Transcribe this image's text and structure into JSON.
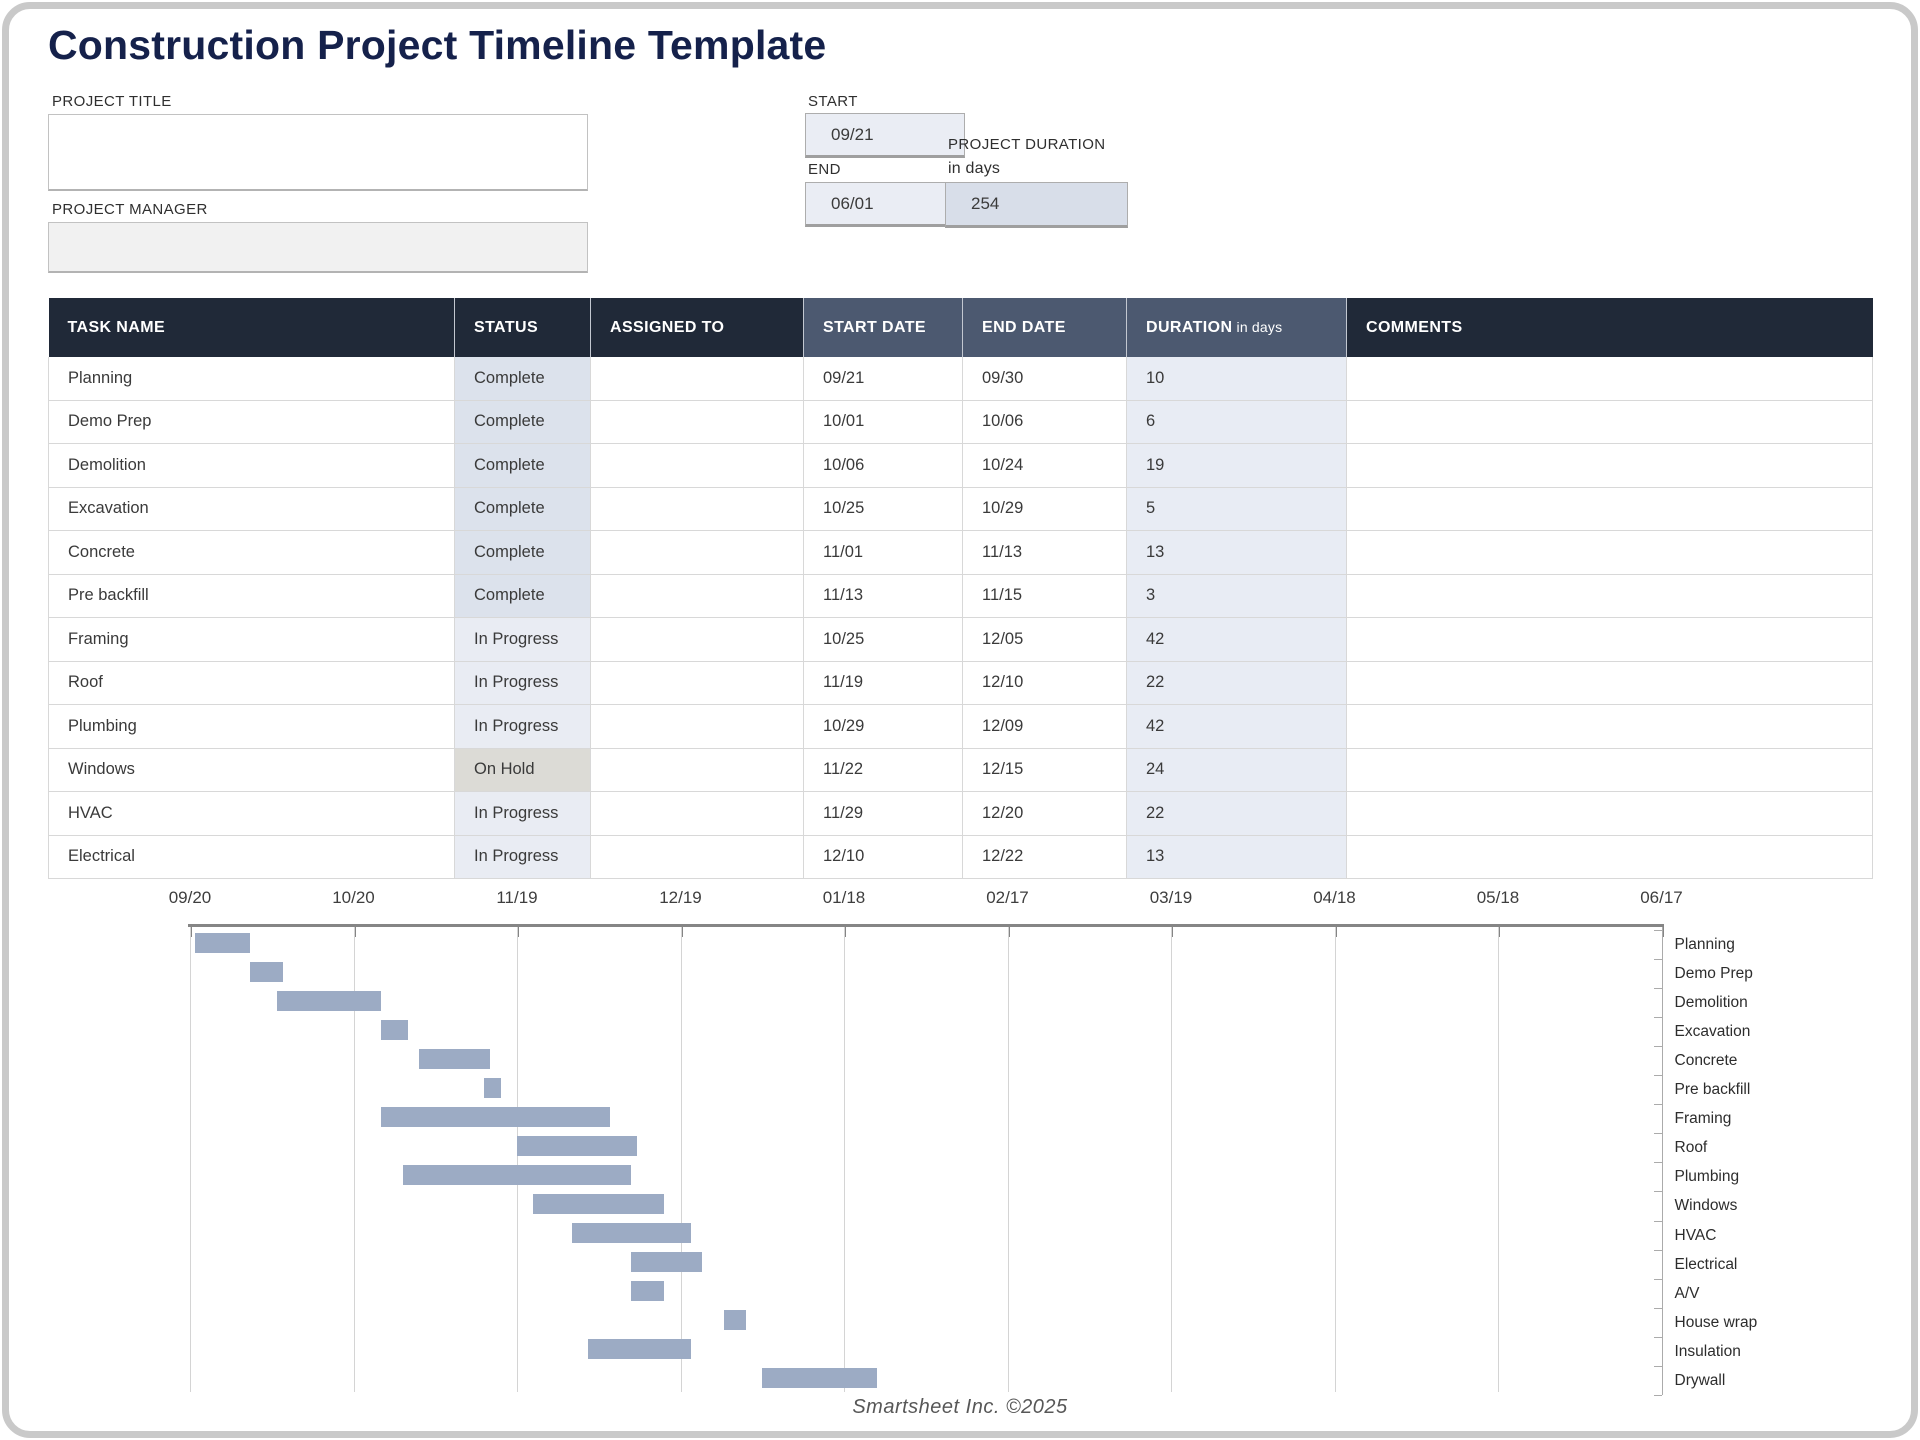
{
  "page": {
    "title": "Construction Project Timeline Template",
    "footer": "Smartsheet Inc. ©2025"
  },
  "form": {
    "project_title_label": "PROJECT TITLE",
    "project_title_value": "",
    "project_manager_label": "PROJECT MANAGER",
    "project_manager_value": "",
    "start_label": "START",
    "start_value": "09/21",
    "end_label": "END",
    "end_value": "06/01",
    "duration_label_line1": "PROJECT DURATION",
    "duration_label_line2": "in days",
    "duration_value": "254"
  },
  "colors": {
    "header_dark": "#202938",
    "header_mid": "#4c5970",
    "duration_cell": "#e8ecf4",
    "bar": "#9cabc4",
    "status": {
      "Complete": "#dce2ec",
      "In Progress": "#e9ecf3",
      "On Hold": "#dcdbd6"
    }
  },
  "table": {
    "columns": [
      {
        "label": "TASK NAME",
        "sub": "",
        "tone": "dark"
      },
      {
        "label": "STATUS",
        "sub": "",
        "tone": "dark"
      },
      {
        "label": "ASSIGNED TO",
        "sub": "",
        "tone": "dark"
      },
      {
        "label": "START DATE",
        "sub": "",
        "tone": "mid"
      },
      {
        "label": "END DATE",
        "sub": "",
        "tone": "mid"
      },
      {
        "label": "DURATION",
        "sub": "in days",
        "tone": "mid"
      },
      {
        "label": "COMMENTS",
        "sub": "",
        "tone": "dark"
      }
    ],
    "rows": [
      {
        "task": "Planning",
        "status": "Complete",
        "assigned": "",
        "start": "09/21",
        "end": "09/30",
        "duration": "10",
        "comments": ""
      },
      {
        "task": "Demo Prep",
        "status": "Complete",
        "assigned": "",
        "start": "10/01",
        "end": "10/06",
        "duration": "6",
        "comments": ""
      },
      {
        "task": "Demolition",
        "status": "Complete",
        "assigned": "",
        "start": "10/06",
        "end": "10/24",
        "duration": "19",
        "comments": ""
      },
      {
        "task": "Excavation",
        "status": "Complete",
        "assigned": "",
        "start": "10/25",
        "end": "10/29",
        "duration": "5",
        "comments": ""
      },
      {
        "task": "Concrete",
        "status": "Complete",
        "assigned": "",
        "start": "11/01",
        "end": "11/13",
        "duration": "13",
        "comments": ""
      },
      {
        "task": "Pre backfill",
        "status": "Complete",
        "assigned": "",
        "start": "11/13",
        "end": "11/15",
        "duration": "3",
        "comments": ""
      },
      {
        "task": "Framing",
        "status": "In Progress",
        "assigned": "",
        "start": "10/25",
        "end": "12/05",
        "duration": "42",
        "comments": ""
      },
      {
        "task": "Roof",
        "status": "In Progress",
        "assigned": "",
        "start": "11/19",
        "end": "12/10",
        "duration": "22",
        "comments": ""
      },
      {
        "task": "Plumbing",
        "status": "In Progress",
        "assigned": "",
        "start": "10/29",
        "end": "12/09",
        "duration": "42",
        "comments": ""
      },
      {
        "task": "Windows",
        "status": "On Hold",
        "assigned": "",
        "start": "11/22",
        "end": "12/15",
        "duration": "24",
        "comments": ""
      },
      {
        "task": "HVAC",
        "status": "In Progress",
        "assigned": "",
        "start": "11/29",
        "end": "12/20",
        "duration": "22",
        "comments": ""
      },
      {
        "task": "Electrical",
        "status": "In Progress",
        "assigned": "",
        "start": "12/10",
        "end": "12/22",
        "duration": "13",
        "comments": ""
      }
    ]
  },
  "chart_data": {
    "type": "bar",
    "variant": "gantt",
    "title": "",
    "x_tick_labels": [
      "09/20",
      "10/20",
      "11/19",
      "12/19",
      "01/18",
      "02/17",
      "03/19",
      "04/18",
      "05/18",
      "06/17"
    ],
    "x_range_days": [
      0,
      270
    ],
    "days_per_tick": 30,
    "grid": true,
    "legend_position": "right-row-labels",
    "bar_color": "#9cabc4",
    "tasks": [
      {
        "name": "Planning",
        "start": "09/21",
        "end": "09/30"
      },
      {
        "name": "Demo Prep",
        "start": "10/01",
        "end": "10/06"
      },
      {
        "name": "Demolition",
        "start": "10/06",
        "end": "10/24"
      },
      {
        "name": "Excavation",
        "start": "10/25",
        "end": "10/29"
      },
      {
        "name": "Concrete",
        "start": "11/01",
        "end": "11/13"
      },
      {
        "name": "Pre backfill",
        "start": "11/13",
        "end": "11/15"
      },
      {
        "name": "Framing",
        "start": "10/25",
        "end": "12/05"
      },
      {
        "name": "Roof",
        "start": "11/19",
        "end": "12/10"
      },
      {
        "name": "Plumbing",
        "start": "10/29",
        "end": "12/09"
      },
      {
        "name": "Windows",
        "start": "11/22",
        "end": "12/15"
      },
      {
        "name": "HVAC",
        "start": "11/29",
        "end": "12/20"
      },
      {
        "name": "Electrical",
        "start": "12/10",
        "end": "12/22"
      },
      {
        "name": "A/V",
        "start": "12/10",
        "end": "12/15"
      },
      {
        "name": "House wrap",
        "start": "12/27",
        "end": "12/30"
      },
      {
        "name": "Insulation",
        "start": "12/02",
        "end": "12/20"
      },
      {
        "name": "Drywall",
        "start": "01/03",
        "end": "01/23"
      }
    ]
  }
}
